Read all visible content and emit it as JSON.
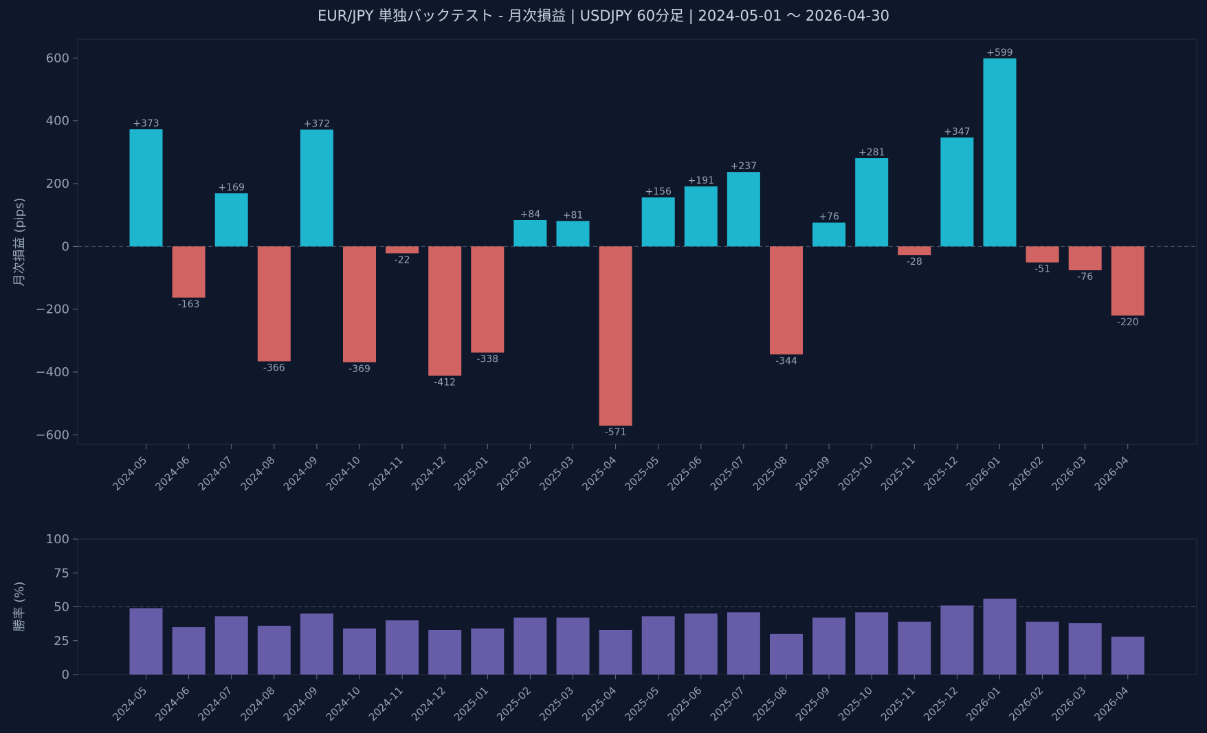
{
  "chart_data": [
    {
      "type": "bar",
      "title": "EUR/JPY 単独バックテスト - 月次損益 | USDJPY 60分足 | 2024-05-01 〜 2026-04-30",
      "ylabel": "月次損益 (pips)",
      "xlabel": "",
      "ylim": [
        -630,
        660
      ],
      "yticks": [
        -600,
        -400,
        -200,
        0,
        200,
        400,
        600
      ],
      "ytick_labels": [
        "−600",
        "−400",
        "−200",
        "0",
        "200",
        "400",
        "600"
      ],
      "reference_line": 0,
      "categories": [
        "2024-05",
        "2024-06",
        "2024-07",
        "2024-08",
        "2024-09",
        "2024-10",
        "2024-11",
        "2024-12",
        "2025-01",
        "2025-02",
        "2025-03",
        "2025-04",
        "2025-05",
        "2025-06",
        "2025-07",
        "2025-08",
        "2025-09",
        "2025-10",
        "2025-11",
        "2025-12",
        "2026-01",
        "2026-02",
        "2026-03",
        "2026-04"
      ],
      "values": [
        373,
        -163,
        169,
        -366,
        372,
        -369,
        -22,
        -412,
        -338,
        84,
        81,
        -571,
        156,
        191,
        237,
        -344,
        76,
        281,
        -28,
        347,
        599,
        -51,
        -76,
        -220
      ],
      "data_labels": [
        "+373",
        "-163",
        "+169",
        "-366",
        "+372",
        "-369",
        "-22",
        "-412",
        "-338",
        "+84",
        "+81",
        "-571",
        "+156",
        "+191",
        "+237",
        "-344",
        "+76",
        "+281",
        "-28",
        "+347",
        "+599",
        "-51",
        "-76",
        "-220"
      ],
      "colors": {
        "positive": "#1eb6cf",
        "negative": "#d16363"
      }
    },
    {
      "type": "bar",
      "ylabel": "勝率 (%)",
      "xlabel": "",
      "ylim": [
        0,
        100
      ],
      "yticks": [
        0,
        25,
        50,
        75,
        100
      ],
      "ytick_labels": [
        "0",
        "25",
        "50",
        "75",
        "100"
      ],
      "reference_line": 50,
      "categories": [
        "2024-05",
        "2024-06",
        "2024-07",
        "2024-08",
        "2024-09",
        "2024-10",
        "2024-11",
        "2024-12",
        "2025-01",
        "2025-02",
        "2025-03",
        "2025-04",
        "2025-05",
        "2025-06",
        "2025-07",
        "2025-08",
        "2025-09",
        "2025-10",
        "2025-11",
        "2025-12",
        "2026-01",
        "2026-02",
        "2026-03",
        "2026-04"
      ],
      "values": [
        49,
        35,
        43,
        36,
        45,
        34,
        40,
        33,
        34,
        42,
        42,
        33,
        43,
        45,
        46,
        30,
        42,
        46,
        39,
        51,
        56,
        39,
        38,
        28
      ],
      "colors": {
        "bar": "#675ca8"
      }
    }
  ]
}
